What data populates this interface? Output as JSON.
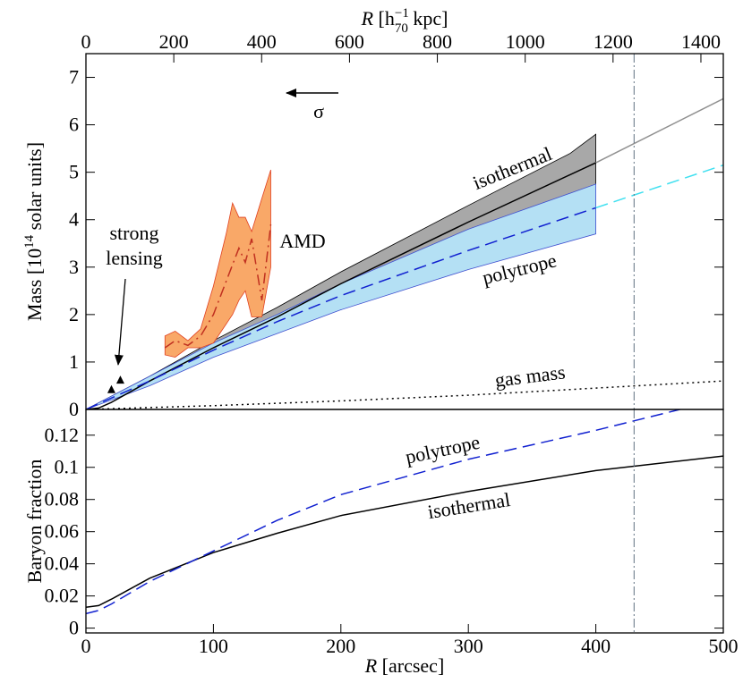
{
  "chart_data": [
    {
      "type": "line",
      "ylabel": {
        "text": "Mass [10",
        "sup": "14",
        "end": " solar units]"
      },
      "x2label": {
        "var": "R",
        "text": " [h",
        "sub": "70",
        "sup": "−1",
        "end": " kpc]"
      },
      "x2lim": [
        0,
        1451
      ],
      "x2ticks": [
        0,
        200,
        400,
        600,
        800,
        1000,
        1200,
        1400
      ],
      "xlim": [
        0,
        500
      ],
      "ylim": [
        0,
        7.5
      ],
      "yticks": [
        0,
        1,
        2,
        3,
        4,
        5,
        6,
        7
      ],
      "vline": 430,
      "bands": [
        {
          "color": "#a8a8a8",
          "edge": "#000000",
          "x": [
            0,
            50,
            100,
            150,
            200,
            300,
            380,
            400
          ],
          "upper": [
            0,
            0.7,
            1.45,
            2.15,
            2.9,
            4.3,
            5.4,
            5.8
          ],
          "lower": [
            0,
            0.6,
            1.25,
            1.85,
            2.4,
            3.35,
            4.1,
            4.25
          ]
        },
        {
          "color": "#b4e0f4",
          "edge": "#4050d0",
          "x": [
            0,
            50,
            100,
            150,
            200,
            300,
            400
          ],
          "upper": [
            0,
            0.7,
            1.4,
            2.0,
            2.65,
            3.8,
            4.75
          ],
          "lower": [
            0,
            0.5,
            1.1,
            1.6,
            2.1,
            2.95,
            3.7
          ]
        },
        {
          "color": "#f9a868",
          "edge": "#e04020",
          "x": [
            62,
            70,
            80,
            90,
            100,
            110,
            115,
            120,
            125,
            130,
            138,
            145
          ],
          "upper": [
            1.55,
            1.65,
            1.45,
            1.7,
            2.6,
            3.7,
            4.35,
            4.05,
            4.05,
            3.75,
            4.45,
            5.05
          ],
          "lower": [
            1.15,
            1.1,
            1.3,
            1.3,
            1.4,
            1.8,
            2.0,
            2.3,
            2.5,
            1.95,
            1.95,
            3.0
          ]
        }
      ],
      "series": [
        {
          "color": "#000000",
          "style": "solid",
          "x": [
            0,
            10,
            20,
            50,
            100,
            150,
            200,
            300,
            400
          ],
          "values": [
            0,
            0.03,
            0.15,
            0.6,
            1.3,
            1.95,
            2.65,
            3.95,
            5.2
          ]
        },
        {
          "color": "#909090",
          "style": "solid",
          "x": [
            400,
            500
          ],
          "values": [
            5.2,
            6.55
          ]
        },
        {
          "color": "#1020d0",
          "style": "dashed",
          "x": [
            0,
            50,
            100,
            150,
            200,
            300,
            400
          ],
          "values": [
            0,
            0.6,
            1.25,
            1.85,
            2.4,
            3.35,
            4.25
          ]
        },
        {
          "color": "#40e0f0",
          "style": "dashed",
          "x": [
            400,
            500
          ],
          "values": [
            4.25,
            5.15
          ]
        },
        {
          "color": "#c03020",
          "style": "dashdot",
          "x": [
            62,
            70,
            80,
            90,
            100,
            110,
            120,
            125,
            130,
            138,
            145
          ],
          "values": [
            1.3,
            1.45,
            1.35,
            1.55,
            2.0,
            2.7,
            3.4,
            3.1,
            3.6,
            2.3,
            3.9
          ]
        },
        {
          "color": "#000000",
          "style": "dotted",
          "x": [
            0,
            100,
            200,
            300,
            400,
            500
          ],
          "values": [
            0,
            0.08,
            0.18,
            0.3,
            0.45,
            0.6
          ]
        }
      ],
      "points": {
        "color": "#000000",
        "x": [
          20,
          27
        ],
        "values": [
          0.42,
          0.62
        ]
      },
      "annotations": [
        "isothermal",
        "polytrope",
        "AMD",
        "gas mass",
        "strong",
        "lensing",
        "σ"
      ]
    },
    {
      "type": "line",
      "ylabel": "Baryon fraction",
      "xlabel": {
        "var": "R",
        "text": " [arcsec]"
      },
      "xlim": [
        0,
        500
      ],
      "xticks": [
        0,
        100,
        200,
        300,
        400,
        500
      ],
      "ylim": [
        -0.003,
        0.136
      ],
      "yticks": [
        0,
        0.02,
        0.04,
        0.06,
        0.08,
        0.1,
        0.12
      ],
      "vline": 430,
      "series": [
        {
          "color": "#000000",
          "style": "solid",
          "x": [
            0,
            10,
            20,
            50,
            100,
            150,
            200,
            300,
            400,
            500
          ],
          "values": [
            0.013,
            0.014,
            0.018,
            0.031,
            0.047,
            0.059,
            0.07,
            0.085,
            0.098,
            0.107
          ]
        },
        {
          "color": "#1020d0",
          "style": "dashed",
          "x": [
            0,
            10,
            20,
            50,
            100,
            150,
            200,
            300,
            400,
            466
          ],
          "values": [
            0.009,
            0.011,
            0.015,
            0.029,
            0.048,
            0.067,
            0.083,
            0.105,
            0.123,
            0.136
          ]
        }
      ],
      "annotations": [
        "polytrope",
        "isothermal"
      ]
    }
  ]
}
